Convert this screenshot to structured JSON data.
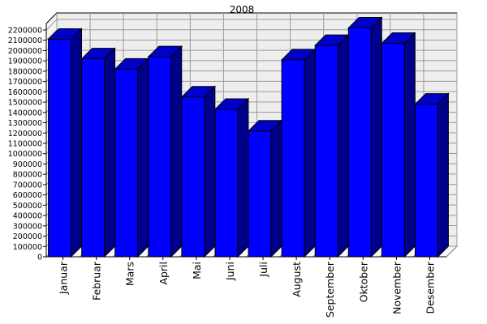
{
  "chart_data": {
    "type": "bar",
    "title": "2008",
    "xlabel": "",
    "ylabel": "",
    "categories": [
      "Januar",
      "Februar",
      "Mars",
      "April",
      "Mai",
      "Juni",
      "Juli",
      "August",
      "September",
      "Oktober",
      "November",
      "Desember"
    ],
    "values": [
      2110000,
      1920000,
      1820000,
      1940000,
      1550000,
      1430000,
      1220000,
      1910000,
      2050000,
      2220000,
      2070000,
      1480000
    ],
    "ylim": [
      0,
      2200000
    ],
    "y_tick_step": 100000,
    "grid": true,
    "legend": false,
    "bar_colors": {
      "front": "#0000ff",
      "top": "#0000c8",
      "side": "#00008b"
    },
    "wall_color": "#eeeeee",
    "grid_color": "#9a9a9a"
  }
}
